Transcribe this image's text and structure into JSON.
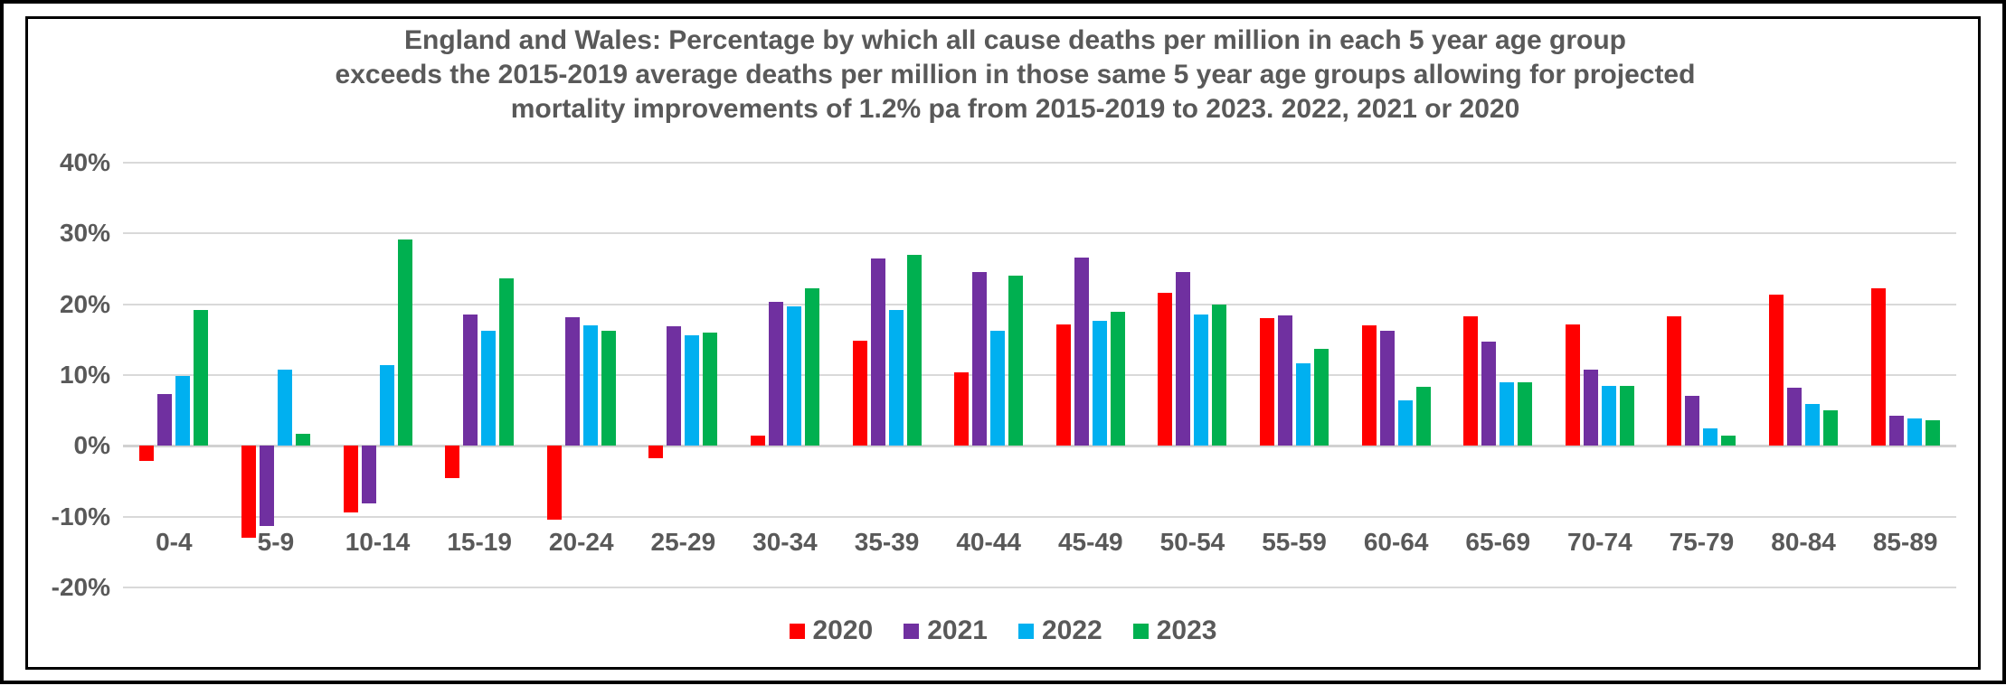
{
  "title": {
    "lines": [
      "England and Wales: Percentage by which all cause deaths per million in each 5 year age group",
      "exceeds the 2015-2019 average deaths per million in those same 5 year age groups allowing for projected",
      "mortality improvements of 1.2% pa from 2015-2019 to 2023. 2022, 2021 or 2020"
    ]
  },
  "colors": {
    "text": "#595959",
    "gridline": "#d9d9d9",
    "frame": "#000000",
    "series_2020": "#ff0000",
    "series_2021": "#7030a0",
    "series_2022": "#00b0f0",
    "series_2023": "#00b050"
  },
  "y_axis": {
    "tick_labels": [
      "40%",
      "30%",
      "20%",
      "10%",
      "0%",
      "-10%",
      "-20%"
    ],
    "tick_values": [
      40,
      30,
      20,
      10,
      0,
      -10,
      -20
    ]
  },
  "chart_data": {
    "type": "bar",
    "title": "England and Wales: Percentage by which all cause deaths per million in each 5 year age group exceeds the 2015-2019 average deaths per million in those same 5 year age groups allowing for projected mortality improvements of 1.2% pa from 2015-2019 to 2023. 2022, 2021 or 2020",
    "categories": [
      "0-4",
      "5-9",
      "10-14",
      "15-19",
      "20-24",
      "25-29",
      "30-34",
      "35-39",
      "40-44",
      "45-49",
      "50-54",
      "55-59",
      "60-64",
      "65-69",
      "70-74",
      "75-79",
      "80-84",
      "85-89"
    ],
    "series": [
      {
        "name": "2020",
        "color": "#ff0000",
        "values": [
          -2.1,
          -13.0,
          -9.4,
          -4.6,
          -10.4,
          -1.8,
          1.5,
          14.9,
          10.4,
          17.2,
          21.6,
          18.1,
          17.0,
          18.3,
          17.2,
          18.3,
          21.3,
          22.2
        ]
      },
      {
        "name": "2021",
        "color": "#7030a0",
        "values": [
          7.3,
          -11.3,
          -8.1,
          18.5,
          18.2,
          16.9,
          20.4,
          26.5,
          24.5,
          26.6,
          24.6,
          18.4,
          16.3,
          14.7,
          10.8,
          7.1,
          8.2,
          4.3
        ]
      },
      {
        "name": "2022",
        "color": "#00b0f0",
        "values": [
          9.9,
          10.8,
          11.4,
          16.2,
          17.0,
          15.6,
          19.7,
          19.2,
          16.3,
          17.7,
          18.6,
          11.6,
          6.4,
          9.0,
          8.5,
          2.5,
          5.9,
          3.9
        ]
      },
      {
        "name": "2023",
        "color": "#00b050",
        "values": [
          19.2,
          1.7,
          29.1,
          23.7,
          16.3,
          16.0,
          22.3,
          27.0,
          24.1,
          18.9,
          20.0,
          13.7,
          8.3,
          9.0,
          8.5,
          1.5,
          5.0,
          3.6
        ]
      }
    ],
    "xlabel": "",
    "ylabel": "",
    "ylim": [
      -20,
      40
    ],
    "grid": true,
    "legend_position": "bottom-center"
  }
}
